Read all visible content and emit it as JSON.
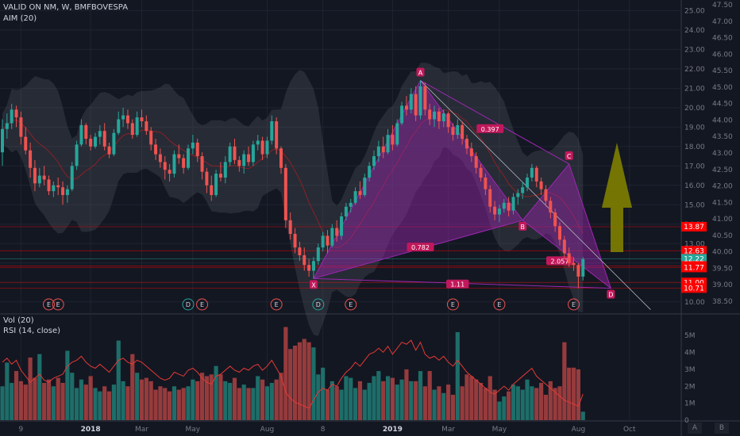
{
  "header": {
    "title": "VALID ON NM, W, BMFBOVESPA",
    "indicator": "AIM (20)",
    "vol_title": "Vol (20)",
    "rsi_title": "RSI (14, close)",
    "button_a": "A",
    "button_b": "B"
  },
  "colors": {
    "background": "#131722",
    "up": "#26a69a",
    "down": "#ef5350",
    "harmonic_fill": "#9c27b0",
    "harmonic_label_bg": "#c2185b",
    "arrow": "#808000",
    "rsi_line": "#e53935",
    "grid": "#1f2430"
  },
  "chart_data": [
    {
      "type": "candlestick",
      "title": "VALID ON NM, W, BMFBOVESPA",
      "x_ticks": [
        "9",
        "2018",
        "Mar",
        "May",
        "Aug",
        "8",
        "2019",
        "Mar",
        "May",
        "Aug",
        "Oct"
      ],
      "y_axis_left_scale": [
        10.0,
        11.0,
        12.0,
        13.0,
        14.0,
        15.0,
        16.0,
        17.0,
        18.0,
        19.0,
        20.0,
        21.0,
        22.0,
        23.0,
        24.0,
        25.0
      ],
      "y_axis_right_scale": [
        38.5,
        39.0,
        39.5,
        40.0,
        40.5,
        41.0,
        41.5,
        42.0,
        42.5,
        43.0,
        43.5,
        44.0,
        44.5,
        45.0,
        45.5,
        46.0,
        46.5,
        47.0,
        47.5
      ],
      "ylim": [
        9.5,
        25.3
      ],
      "price_labels": [
        {
          "text": "13.87",
          "value": 13.87,
          "color": "#ff0000"
        },
        {
          "text": "12.63",
          "value": 12.63,
          "color": "#ff0000"
        },
        {
          "text": "12.22",
          "value": 12.22,
          "color": "#26a69a"
        },
        {
          "text": "11.85",
          "value": 11.85,
          "color": "#ff0000"
        },
        {
          "text": "11.77",
          "value": 11.77,
          "color": "#ff0000"
        },
        {
          "text": "11.00",
          "value": 11.0,
          "color": "#ff0000"
        },
        {
          "text": "10.71",
          "value": 10.71,
          "color": "#ff0000"
        }
      ],
      "harmonic_pattern": {
        "points": [
          {
            "label": "X",
            "week": 67,
            "price": 11.2
          },
          {
            "label": "A",
            "week": 90,
            "price": 21.4
          },
          {
            "label": "B",
            "week": 112,
            "price": 14.2
          },
          {
            "label": "C",
            "week": 122,
            "price": 17.1
          },
          {
            "label": "D",
            "week": 131,
            "price": 10.7
          }
        ],
        "ratios": [
          {
            "text": "0.397",
            "week": 105,
            "price": 18.9
          },
          {
            "text": "0.782",
            "week": 90,
            "price": 12.8
          },
          {
            "text": "2.057",
            "week": 120,
            "price": 12.1
          },
          {
            "text": "1.11",
            "week": 98,
            "price": 10.9
          }
        ]
      },
      "event_markers": [
        {
          "text": "E",
          "week": 10
        },
        {
          "text": "E",
          "week": 12
        },
        {
          "text": "D",
          "week": 40
        },
        {
          "text": "E",
          "week": 43
        },
        {
          "text": "E",
          "week": 59
        },
        {
          "text": "D",
          "week": 68
        },
        {
          "text": "E",
          "week": 75
        },
        {
          "text": "E",
          "week": 97
        },
        {
          "text": "E",
          "week": 107
        },
        {
          "text": "E",
          "week": 123
        }
      ],
      "candles": [
        [
          17.7,
          19.4,
          17.0,
          18.9
        ],
        [
          18.9,
          19.7,
          18.4,
          19.2
        ],
        [
          19.2,
          20.2,
          18.9,
          19.9
        ],
        [
          19.9,
          20.1,
          19.0,
          19.5
        ],
        [
          19.5,
          19.8,
          18.1,
          18.5
        ],
        [
          18.5,
          19.0,
          17.6,
          17.8
        ],
        [
          17.8,
          18.2,
          16.4,
          16.9
        ],
        [
          16.9,
          17.3,
          15.7,
          16.1
        ],
        [
          16.1,
          16.9,
          15.9,
          16.5
        ],
        [
          16.5,
          17.0,
          16.0,
          16.3
        ],
        [
          16.3,
          16.5,
          15.5,
          15.7
        ],
        [
          15.7,
          16.2,
          15.4,
          16.0
        ],
        [
          16.0,
          16.4,
          15.5,
          15.9
        ],
        [
          15.9,
          16.2,
          15.0,
          15.5
        ],
        [
          15.5,
          16.0,
          15.1,
          15.8
        ],
        [
          15.8,
          17.2,
          15.7,
          17.0
        ],
        [
          17.0,
          18.3,
          16.8,
          18.1
        ],
        [
          18.1,
          19.4,
          18.0,
          19.1
        ],
        [
          19.1,
          19.2,
          18.1,
          18.4
        ],
        [
          18.4,
          18.6,
          17.8,
          18.0
        ],
        [
          18.0,
          18.7,
          17.9,
          18.5
        ],
        [
          18.5,
          19.1,
          18.1,
          18.8
        ],
        [
          18.8,
          19.2,
          17.8,
          18.0
        ],
        [
          18.0,
          18.2,
          17.4,
          17.6
        ],
        [
          17.6,
          18.9,
          17.5,
          18.7
        ],
        [
          18.7,
          19.8,
          18.6,
          19.4
        ],
        [
          19.4,
          20.0,
          19.0,
          19.6
        ],
        [
          19.6,
          19.9,
          18.9,
          19.2
        ],
        [
          19.2,
          19.4,
          18.4,
          18.6
        ],
        [
          18.6,
          19.8,
          18.5,
          19.5
        ],
        [
          19.5,
          19.9,
          19.0,
          19.3
        ],
        [
          19.3,
          19.6,
          18.6,
          18.8
        ],
        [
          18.8,
          19.0,
          17.8,
          18.1
        ],
        [
          18.1,
          18.4,
          17.3,
          17.6
        ],
        [
          17.6,
          17.9,
          16.9,
          17.2
        ],
        [
          17.2,
          17.5,
          16.3,
          16.8
        ],
        [
          16.8,
          17.1,
          16.2,
          16.6
        ],
        [
          16.6,
          17.8,
          16.4,
          17.6
        ],
        [
          17.6,
          18.1,
          17.1,
          17.4
        ],
        [
          17.4,
          17.6,
          16.6,
          16.9
        ],
        [
          16.9,
          18.1,
          16.8,
          17.9
        ],
        [
          17.9,
          18.6,
          17.6,
          18.2
        ],
        [
          18.2,
          18.4,
          17.2,
          17.5
        ],
        [
          17.5,
          17.7,
          16.3,
          16.7
        ],
        [
          16.7,
          16.9,
          15.6,
          16.0
        ],
        [
          16.0,
          16.5,
          15.2,
          15.5
        ],
        [
          15.5,
          16.8,
          15.4,
          16.6
        ],
        [
          16.6,
          17.2,
          16.2,
          16.4
        ],
        [
          16.4,
          17.5,
          16.1,
          17.2
        ],
        [
          17.2,
          18.2,
          17.0,
          18.0
        ],
        [
          18.0,
          18.4,
          17.1,
          17.3
        ],
        [
          17.3,
          17.5,
          16.7,
          17.0
        ],
        [
          17.0,
          17.8,
          16.6,
          17.6
        ],
        [
          17.6,
          18.0,
          17.0,
          17.2
        ],
        [
          17.2,
          18.3,
          17.0,
          18.1
        ],
        [
          18.1,
          18.6,
          17.8,
          18.3
        ],
        [
          18.3,
          18.5,
          17.3,
          17.6
        ],
        [
          17.6,
          18.5,
          17.4,
          18.3
        ],
        [
          18.3,
          19.6,
          18.1,
          19.3
        ],
        [
          19.3,
          19.5,
          17.6,
          17.9
        ],
        [
          17.9,
          18.0,
          16.6,
          16.9
        ],
        [
          16.9,
          17.1,
          13.8,
          14.2
        ],
        [
          14.2,
          14.6,
          13.2,
          13.5
        ],
        [
          13.5,
          13.8,
          12.5,
          12.8
        ],
        [
          12.8,
          13.1,
          12.1,
          12.4
        ],
        [
          12.4,
          12.8,
          11.6,
          11.9
        ],
        [
          11.9,
          12.2,
          11.3,
          11.6
        ],
        [
          11.6,
          12.3,
          11.2,
          12.1
        ],
        [
          12.1,
          13.0,
          11.9,
          12.8
        ],
        [
          12.8,
          13.6,
          12.6,
          13.4
        ],
        [
          13.4,
          13.7,
          12.5,
          12.9
        ],
        [
          12.9,
          14.0,
          12.8,
          13.8
        ],
        [
          13.8,
          14.2,
          13.1,
          13.4
        ],
        [
          13.4,
          14.6,
          13.2,
          14.4
        ],
        [
          14.4,
          15.1,
          14.2,
          14.9
        ],
        [
          14.9,
          15.3,
          14.6,
          15.1
        ],
        [
          15.1,
          15.9,
          15.0,
          15.7
        ],
        [
          15.7,
          16.2,
          15.3,
          15.5
        ],
        [
          15.5,
          16.6,
          15.4,
          16.4
        ],
        [
          16.4,
          17.2,
          16.2,
          17.0
        ],
        [
          17.0,
          17.8,
          16.8,
          17.5
        ],
        [
          17.5,
          18.3,
          17.2,
          18.0
        ],
        [
          18.0,
          18.5,
          17.4,
          17.7
        ],
        [
          17.7,
          18.9,
          17.6,
          18.6
        ],
        [
          18.6,
          19.1,
          17.8,
          18.1
        ],
        [
          18.1,
          19.4,
          18.0,
          19.2
        ],
        [
          19.2,
          20.3,
          19.1,
          20.1
        ],
        [
          20.1,
          20.6,
          19.6,
          19.9
        ],
        [
          19.9,
          21.0,
          19.7,
          20.7
        ],
        [
          20.7,
          21.1,
          19.3,
          19.6
        ],
        [
          19.6,
          21.4,
          19.4,
          21.1
        ],
        [
          21.1,
          21.3,
          19.6,
          19.9
        ],
        [
          19.9,
          20.2,
          19.1,
          19.4
        ],
        [
          19.4,
          20.1,
          19.0,
          19.8
        ],
        [
          19.8,
          20.0,
          18.9,
          19.3
        ],
        [
          19.3,
          19.9,
          19.0,
          19.7
        ],
        [
          19.7,
          19.8,
          18.7,
          19.0
        ],
        [
          19.0,
          19.2,
          18.3,
          18.6
        ],
        [
          18.6,
          19.4,
          18.4,
          19.1
        ],
        [
          19.1,
          19.3,
          18.1,
          18.4
        ],
        [
          18.4,
          18.6,
          17.6,
          17.9
        ],
        [
          17.9,
          18.2,
          17.2,
          17.5
        ],
        [
          17.5,
          17.7,
          16.6,
          16.9
        ],
        [
          16.9,
          17.1,
          16.2,
          16.4
        ],
        [
          16.4,
          16.6,
          15.5,
          15.8
        ],
        [
          15.8,
          16.0,
          14.6,
          14.9
        ],
        [
          14.9,
          15.2,
          14.2,
          14.5
        ],
        [
          14.5,
          15.0,
          14.1,
          14.8
        ],
        [
          14.8,
          15.3,
          14.6,
          15.1
        ],
        [
          15.1,
          15.4,
          14.4,
          14.7
        ],
        [
          14.7,
          15.6,
          14.5,
          15.4
        ],
        [
          15.4,
          15.8,
          15.0,
          15.6
        ],
        [
          15.6,
          16.2,
          15.3,
          15.9
        ],
        [
          15.9,
          16.6,
          15.7,
          16.4
        ],
        [
          16.4,
          17.1,
          16.2,
          16.9
        ],
        [
          16.9,
          17.0,
          15.9,
          16.2
        ],
        [
          16.2,
          16.4,
          15.5,
          15.8
        ],
        [
          15.8,
          16.0,
          14.9,
          15.2
        ],
        [
          15.2,
          15.4,
          14.3,
          14.6
        ],
        [
          14.6,
          14.8,
          13.6,
          13.9
        ],
        [
          13.9,
          14.1,
          12.9,
          13.2
        ],
        [
          13.2,
          13.4,
          12.2,
          12.5
        ],
        [
          12.5,
          12.8,
          11.8,
          12.0
        ],
        [
          12.0,
          12.3,
          11.6,
          11.9
        ],
        [
          11.9,
          12.0,
          10.7,
          11.3
        ],
        [
          11.3,
          12.3,
          11.1,
          12.2
        ]
      ],
      "volume_axis": [
        "0",
        "1M",
        "2M",
        "3M",
        "4M",
        "5M"
      ],
      "volume_millions": [
        2.0,
        3.4,
        2.2,
        2.9,
        2.3,
        2.1,
        3.7,
        2.5,
        3.9,
        2.2,
        2.4,
        2.0,
        2.5,
        2.2,
        4.1,
        2.8,
        1.9,
        2.4,
        2.1,
        2.6,
        1.9,
        1.7,
        2.0,
        1.7,
        2.1,
        4.7,
        2.3,
        2.0,
        3.9,
        2.8,
        2.4,
        2.5,
        2.3,
        1.8,
        2.0,
        1.9,
        1.7,
        2.0,
        1.8,
        1.9,
        2.0,
        2.4,
        2.3,
        2.8,
        2.6,
        2.7,
        3.2,
        2.7,
        2.3,
        2.2,
        2.5,
        1.9,
        2.1,
        1.9,
        1.9,
        2.6,
        2.4,
        2.0,
        2.2,
        2.4,
        2.8,
        5.5,
        4.2,
        4.4,
        4.6,
        4.8,
        4.6,
        4.3,
        2.7,
        3.1,
        1.8,
        2.3,
        2.0,
        1.8,
        2.6,
        2.5,
        1.9,
        2.3,
        1.8,
        2.2,
        2.6,
        2.9,
        2.3,
        2.6,
        2.5,
        2.1,
        2.4,
        3.0,
        2.3,
        2.3,
        2.9,
        2.0,
        2.9,
        1.8,
        2.0,
        1.6,
        2.1,
        1.5,
        5.2,
        2.0,
        2.7,
        2.6,
        2.4,
        2.2,
        1.9,
        2.6,
        1.8,
        1.1,
        1.4,
        1.7,
        2.1,
        2.0,
        1.8,
        2.4,
        2.0,
        1.9,
        2.2,
        1.5,
        2.3,
        1.9,
        2.0,
        4.6,
        3.1,
        3.1,
        3.0,
        0.5
      ],
      "rsi_values": [
        58,
        62,
        56,
        60,
        50,
        44,
        38,
        42,
        46,
        40,
        38,
        42,
        44,
        46,
        54,
        58,
        60,
        64,
        58,
        54,
        52,
        56,
        52,
        48,
        54,
        60,
        62,
        58,
        56,
        60,
        58,
        54,
        50,
        46,
        42,
        40,
        42,
        48,
        46,
        44,
        50,
        52,
        48,
        42,
        38,
        36,
        44,
        46,
        50,
        54,
        50,
        48,
        52,
        50,
        54,
        56,
        50,
        54,
        60,
        52,
        44,
        28,
        22,
        18,
        16,
        14,
        12,
        20,
        28,
        32,
        30,
        36,
        34,
        42,
        48,
        52,
        58,
        54,
        60,
        66,
        68,
        72,
        68,
        74,
        66,
        72,
        78,
        76,
        80,
        70,
        78,
        66,
        62,
        64,
        60,
        64,
        58,
        54,
        60,
        54,
        48,
        44,
        40,
        36,
        32,
        28,
        26,
        30,
        34,
        30,
        36,
        40,
        44,
        48,
        52,
        44,
        40,
        36,
        32,
        28,
        24,
        20,
        18,
        16,
        14,
        26
      ]
    }
  ]
}
